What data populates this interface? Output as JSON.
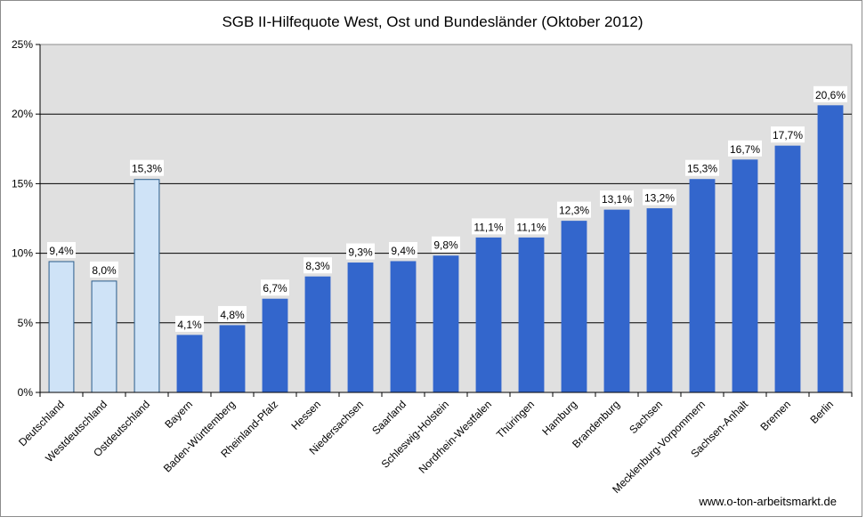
{
  "chart_data": {
    "type": "bar",
    "title": "SGB II-Hilfequote West, Ost und Bundesländer (Oktober 2012)",
    "xlabel": "",
    "ylabel": "",
    "ylim": [
      0,
      25
    ],
    "yticks": [
      0,
      5,
      10,
      15,
      20,
      25
    ],
    "ytick_labels": [
      "0%",
      "5%",
      "10%",
      "15%",
      "20%",
      "25%"
    ],
    "grid": true,
    "legend": "none",
    "categories": [
      "Deutschland",
      "Westdeutschland",
      "Ostdeutschland",
      "Bayern",
      "Baden-Württemberg",
      "Rheinland-Pfalz",
      "Hessen",
      "Niedersachsen",
      "Saarland",
      "Schleswig-Holstein",
      "Nordrhein-Westfalen",
      "Thüringen",
      "Hamburg",
      "Brandenburg",
      "Sachsen",
      "Mecklenburg-Vorpommern",
      "Sachsen-Anhalt",
      "Bremen",
      "Berlin"
    ],
    "values": [
      9.4,
      8.0,
      15.3,
      4.1,
      4.8,
      6.7,
      8.3,
      9.3,
      9.4,
      9.8,
      11.1,
      11.1,
      12.3,
      13.1,
      13.2,
      15.3,
      16.7,
      17.7,
      20.6
    ],
    "data_labels": [
      "9,4%",
      "8,0%",
      "15,3%",
      "4,1%",
      "4,8%",
      "6,7%",
      "8,3%",
      "9,3%",
      "9,4%",
      "9,8%",
      "11,1%",
      "11,1%",
      "12,3%",
      "13,1%",
      "13,2%",
      "15,3%",
      "16,7%",
      "17,7%",
      "20,6%"
    ],
    "bar_groups": [
      "aggregate",
      "aggregate",
      "aggregate",
      "state",
      "state",
      "state",
      "state",
      "state",
      "state",
      "state",
      "state",
      "state",
      "state",
      "state",
      "state",
      "state",
      "state",
      "state",
      "state"
    ],
    "colors": {
      "aggregate": "#cfe3f7",
      "aggregate_border": "#2a5d8c",
      "state": "#3366cc",
      "plot_background": "#e0e0e0",
      "gridline": "#000000"
    },
    "source": "www.o-ton-arbeitsmarkt.de"
  }
}
